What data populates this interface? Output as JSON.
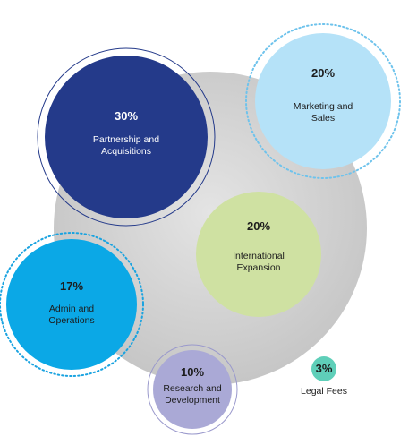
{
  "chart_data": {
    "type": "bubble",
    "categories": [
      "Partnership and Acquisitions",
      "Marketing and Sales",
      "International Expansion",
      "Admin and Operations",
      "Research and Development",
      "Legal Fees"
    ],
    "values": [
      30,
      20,
      20,
      17,
      10,
      3
    ],
    "value_labels": [
      "30%",
      "20%",
      "20%",
      "17%",
      "10%",
      "3%"
    ],
    "colors": [
      "#243a8a",
      "#b5e2f8",
      "#cfe1a2",
      "#0ba8e6",
      "#aaa9d6",
      "#5fcfb9"
    ]
  }
}
